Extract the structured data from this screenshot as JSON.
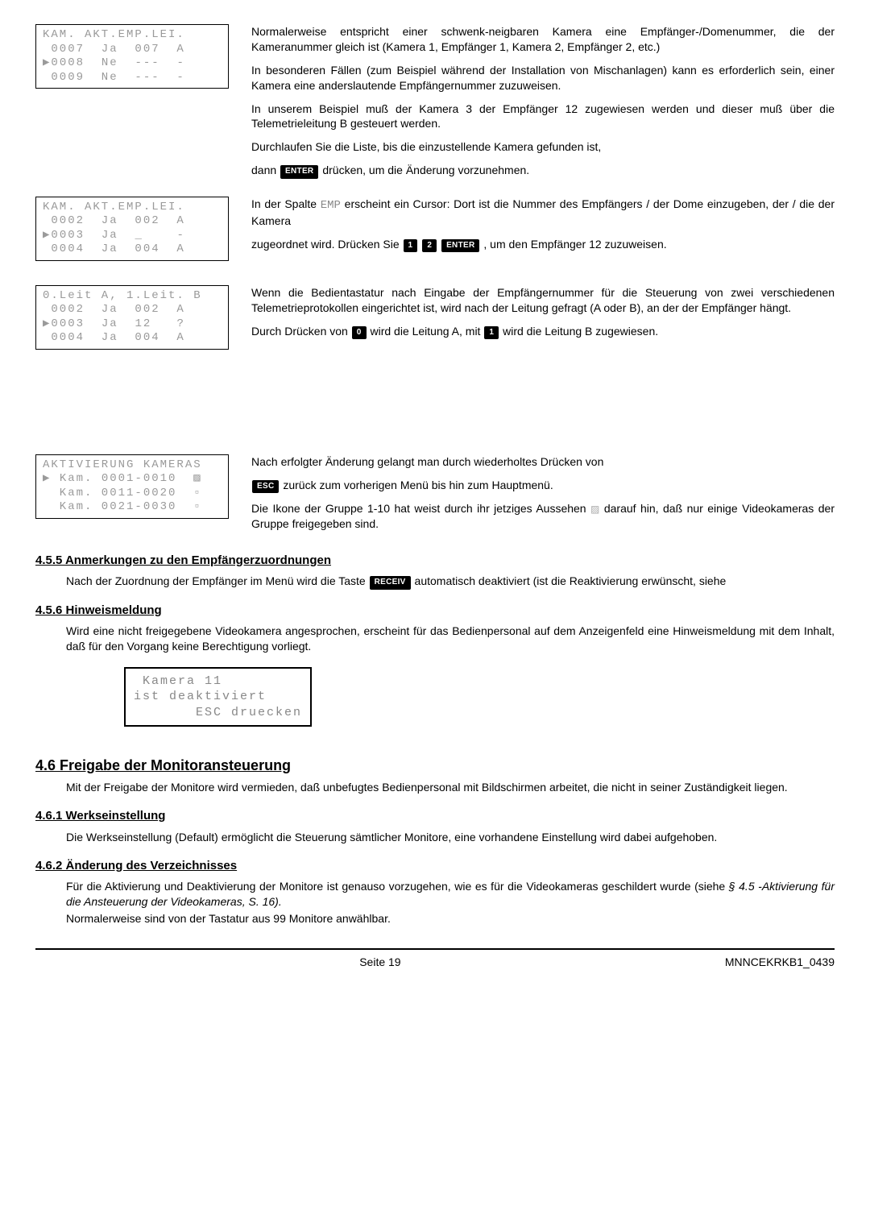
{
  "lcd1": "KAM. AKT.EMP.LEI.\n 0007  Ja  007  A\n▶0008  Ne  ---  -\n 0009  Ne  ---  -",
  "lcd2": "KAM. AKT.EMP.LEI.\n 0002  Ja  002  A\n▶0003  Ja  _    -\n 0004  Ja  004  A",
  "lcd3": "0.Leit A, 1.Leit. B\n 0002  Ja  002  A\n▶0003  Ja  12   ?\n 0004  Ja  004  A",
  "lcd4": "AKTIVIERUNG KAMERAS\n▶ Kam. 0001-0010  ▨\n  Kam. 0011-0020  ▫\n  Kam. 0021-0030  ▫",
  "lcd5": " Kamera 11\nist deaktiviert\n       ESC druecken",
  "p1": "Normalerweise entspricht einer schwenk-neigbaren Kamera eine Empfänger-/Domenummer, die der Kameranummer gleich ist (Kamera 1, Empfänger 1, Kamera 2, Empfänger 2, etc.)",
  "p2": "In besonderen Fällen (zum Beispiel während der Installation von Mischanlagen) kann es erforderlich sein, einer Kamera eine anderslautende Empfängernummer zuzuweisen.",
  "p3": "In unserem Beispiel muß der Kamera 3 der Empfänger 12 zugewiesen werden und dieser muß über die Telemetrieleitung B gesteuert werden.",
  "p4": "Durchlaufen Sie die Liste, bis die einzustellende Kamera gefunden ist,",
  "p5a": "dann ",
  "p5b": " drücken, um die Änderung vorzunehmen.",
  "p6a": "In der Spalte ",
  "p6b": " erscheint ein Cursor: Dort ist die Nummer des Empfängers / der Dome einzugeben, der / die der Kamera",
  "p7a": "zugeordnet wird. Drücken Sie ",
  "p7b": " , um den Empfänger 12 zuzuweisen.",
  "p8": "Wenn die Bedientastatur nach Eingabe der Empfängernummer für die Steuerung von zwei verschiedenen Telemetrieprotokollen eingerichtet ist, wird nach der Leitung gefragt (A oder B), an der der Empfänger hängt.",
  "p9a": "Durch Drücken von ",
  "p9b": " wird die Leitung A, mit ",
  "p9c": " wird die Leitung B zugewiesen.",
  "p10": "Nach erfolgter Änderung gelangt man durch wiederholtes Drücken von",
  "p11a": "",
  "p11b": " zurück zum vorherigen Menü bis hin zum Hauptmenü.",
  "p12a": "Die Ikone der Gruppe 1-10 hat weist durch ihr jetziges Aussehen ",
  "p12b": " darauf hin, daß nur einige Videokameras der Gruppe freigegeben sind.",
  "h455": "4.5.5 Anmerkungen zu den Empfängerzuordnungen",
  "p455a": "Nach der Zuordnung der Empfänger im Menü wird die Taste ",
  "p455b": " automatisch deaktiviert (ist die Reaktivierung erwünscht, siehe",
  "h456": "4.5.6 Hinweismeldung",
  "p456": "Wird eine nicht freigegebene Videokamera angesprochen, erscheint für das Bedienpersonal auf dem Anzeigenfeld eine Hinweismeldung mit dem Inhalt, daß für den Vorgang keine Berechtigung vorliegt.",
  "h46": "4.6 Freigabe der Monitoransteuerung",
  "p46": "Mit der Freigabe der Monitore wird vermieden, daß unbefugtes Bedienpersonal mit Bildschirmen arbeitet, die nicht in seiner Zuständigkeit liegen.",
  "h461": "4.6.1 Werkseinstellung",
  "p461": "Die Werkseinstellung (Default) ermöglicht die Steuerung sämtlicher Monitore, eine vorhandene Einstellung wird dabei aufgehoben.",
  "h462": "4.6.2 Änderung des Verzeichnisses",
  "p462a": "Für die Aktivierung und Deaktivierung der Monitore ist genauso vorzugehen, wie es für die Videokameras geschildert wurde (siehe ",
  "p462b": "§ 4.5 -Aktivierung für die Ansteuerung der Videokameras, S. 16).",
  "p462c": "Normalerweise sind von der Tastatur aus 99 Monitore anwählbar.",
  "keys": {
    "enter": "ENTER",
    "k1": "1",
    "k2": "2",
    "k0": "0",
    "esc": "ESC",
    "receiv": "RECEIV",
    "emp": "EMP"
  },
  "footer": {
    "page": "Seite 19",
    "doc": "MNNCEKRKB1_0439"
  }
}
